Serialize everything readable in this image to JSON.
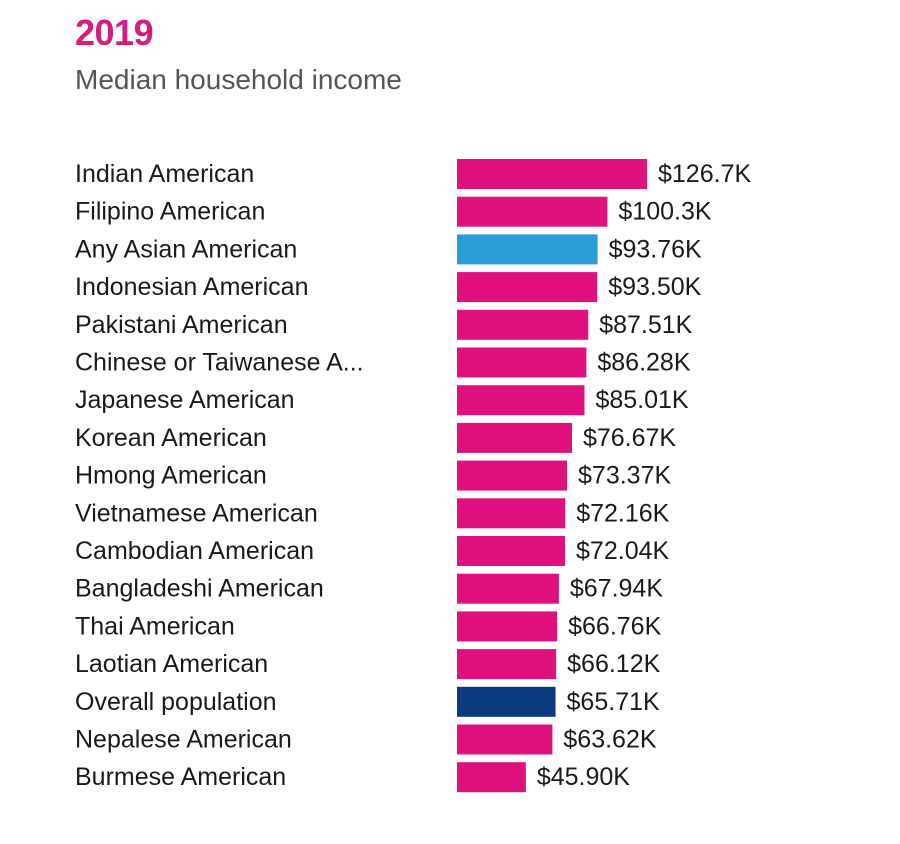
{
  "header": {
    "year": "2019",
    "subtitle": "Median household income"
  },
  "colors": {
    "accent": "#d21f7f",
    "asian_overall": "#2b9ed8",
    "overall_population": "#0b3a7e",
    "default_bar": "#e0117f"
  },
  "chart_data": {
    "type": "bar",
    "orientation": "horizontal",
    "title": "2019",
    "subtitle": "Median household income",
    "xlabel": "",
    "ylabel": "",
    "grid": false,
    "legend": "none",
    "categories": [
      "Indian American",
      "Filipino American",
      "Any Asian American",
      "Indonesian American",
      "Pakistani American",
      "Chinese or Taiwanese A...",
      "Japanese American",
      "Korean American",
      "Hmong American",
      "Vietnamese American",
      "Cambodian American",
      "Bangladeshi American",
      "Thai American",
      "Laotian American",
      "Overall population",
      "Nepalese American",
      "Burmese American"
    ],
    "values": [
      126.7,
      100.3,
      93.76,
      93.5,
      87.51,
      86.28,
      85.01,
      76.67,
      73.37,
      72.16,
      72.04,
      67.94,
      66.76,
      66.12,
      65.71,
      63.62,
      45.9
    ],
    "value_labels": [
      "$126.7K",
      "$100.3K",
      "$93.76K",
      "$93.50K",
      "$87.51K",
      "$86.28K",
      "$85.01K",
      "$76.67K",
      "$73.37K",
      "$72.16K",
      "$72.04K",
      "$67.94K",
      "$66.76K",
      "$66.12K",
      "$65.71K",
      "$63.62K",
      "$45.90K"
    ],
    "bar_colors": [
      "#e0117f",
      "#e0117f",
      "#2b9ed8",
      "#e0117f",
      "#e0117f",
      "#e0117f",
      "#e0117f",
      "#e0117f",
      "#e0117f",
      "#e0117f",
      "#e0117f",
      "#e0117f",
      "#e0117f",
      "#e0117f",
      "#0b3a7e",
      "#e0117f",
      "#e0117f"
    ],
    "units": "thousands of US dollars"
  }
}
